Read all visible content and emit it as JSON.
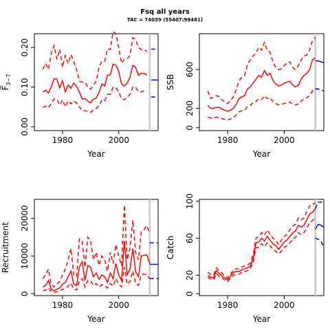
{
  "title": "Fsq all years",
  "subtitle": "TAC = 74039 (55407;99481)",
  "colors": {
    "historic": "#ff0000",
    "projection": "#0000ff",
    "marker": "#c8c8c8"
  },
  "chart_data": [
    {
      "id": "fbar",
      "type": "line",
      "xlabel": "Year",
      "ylabel": "F̅",
      "ylabel_sub": "3−7",
      "xlim": [
        1970,
        2014
      ],
      "ylim": [
        -0.01,
        0.235
      ],
      "xticks": [
        1980,
        2000
      ],
      "yticks": [
        0.0,
        0.1,
        0.2
      ],
      "ytick_labels": [
        "0.00",
        "0.10",
        "0.20"
      ],
      "marker_year": 2011,
      "years": [
        1973,
        1974,
        1975,
        1976,
        1977,
        1978,
        1979,
        1980,
        1981,
        1982,
        1983,
        1984,
        1985,
        1986,
        1987,
        1988,
        1989,
        1990,
        1991,
        1992,
        1993,
        1994,
        1995,
        1996,
        1997,
        1998,
        1999,
        2000,
        2001,
        2002,
        2003,
        2004,
        2005,
        2006,
        2007,
        2008,
        2009,
        2010
      ],
      "series": [
        {
          "role": "estimate",
          "values": [
            0.088,
            0.092,
            0.085,
            0.1,
            0.121,
            0.12,
            0.098,
            0.116,
            0.088,
            0.105,
            0.097,
            0.11,
            0.102,
            0.088,
            0.07,
            0.071,
            0.065,
            0.06,
            0.07,
            0.072,
            0.087,
            0.108,
            0.103,
            0.13,
            0.131,
            0.158,
            0.155,
            0.14,
            0.108,
            0.103,
            0.11,
            0.125,
            0.155,
            0.15,
            0.13,
            0.135,
            0.135,
            0.13
          ]
        },
        {
          "role": "upper",
          "values": [
            0.145,
            0.16,
            0.145,
            0.185,
            0.205,
            0.17,
            0.195,
            0.15,
            0.18,
            0.16,
            0.182,
            0.165,
            0.145,
            0.115,
            0.113,
            0.113,
            0.1,
            0.095,
            0.105,
            0.115,
            0.15,
            0.165,
            0.165,
            0.197,
            0.195,
            0.24,
            0.235,
            0.2,
            0.16,
            0.17,
            0.172,
            0.18,
            0.225,
            0.22,
            0.2,
            0.195,
            0.195,
            0.19
          ]
        },
        {
          "role": "lower",
          "values": [
            0.048,
            0.052,
            0.048,
            0.058,
            0.07,
            0.07,
            0.055,
            0.068,
            0.05,
            0.065,
            0.058,
            0.065,
            0.06,
            0.05,
            0.04,
            0.041,
            0.038,
            0.036,
            0.043,
            0.046,
            0.053,
            0.067,
            0.065,
            0.082,
            0.082,
            0.1,
            0.098,
            0.088,
            0.07,
            0.068,
            0.073,
            0.082,
            0.1,
            0.1,
            0.088,
            0.088,
            0.09,
            0.088
          ]
        }
      ],
      "projection": {
        "start": 2011.5,
        "end": 2014,
        "estimate": 0.118,
        "upper": 0.196,
        "lower": 0.075
      }
    },
    {
      "id": "ssb",
      "type": "line",
      "xlabel": "Year",
      "ylabel": "SSB",
      "xlim": [
        1970,
        2014
      ],
      "ylim": [
        -30,
        970
      ],
      "xticks": [
        1980,
        2000
      ],
      "yticks": [
        0,
        200,
        600
      ],
      "ytick_labels": [
        "0",
        "200",
        "600"
      ],
      "marker_year": 2011,
      "years": [
        1973,
        1974,
        1975,
        1976,
        1977,
        1978,
        1979,
        1980,
        1981,
        1982,
        1983,
        1984,
        1985,
        1986,
        1987,
        1988,
        1989,
        1990,
        1991,
        1992,
        1993,
        1994,
        1995,
        1996,
        1997,
        1998,
        1999,
        2000,
        2001,
        2002,
        2003,
        2004,
        2005,
        2006,
        2007,
        2008,
        2009,
        2010,
        2011
      ],
      "series": [
        {
          "role": "estimate",
          "values": [
            230,
            200,
            200,
            210,
            210,
            195,
            180,
            170,
            180,
            200,
            240,
            300,
            320,
            330,
            400,
            420,
            460,
            500,
            540,
            520,
            590,
            540,
            560,
            490,
            450,
            430,
            440,
            460,
            470,
            480,
            440,
            420,
            440,
            500,
            540,
            560,
            600,
            700,
            720
          ]
        },
        {
          "role": "upper",
          "values": [
            380,
            300,
            320,
            330,
            320,
            290,
            260,
            250,
            280,
            320,
            390,
            480,
            520,
            540,
            650,
            700,
            740,
            770,
            830,
            800,
            880,
            800,
            780,
            680,
            620,
            600,
            610,
            640,
            670,
            680,
            620,
            600,
            640,
            700,
            740,
            750,
            800,
            900,
            930
          ]
        },
        {
          "role": "lower",
          "values": [
            110,
            100,
            100,
            110,
            105,
            95,
            85,
            80,
            90,
            105,
            130,
            165,
            175,
            180,
            220,
            230,
            260,
            270,
            300,
            290,
            330,
            300,
            310,
            270,
            250,
            235,
            240,
            250,
            255,
            265,
            240,
            235,
            245,
            275,
            300,
            310,
            330,
            380,
            400
          ]
        }
      ],
      "projection": {
        "start": 2011,
        "end": 2014,
        "estimate_values": [
          690,
          690,
          680,
          670
        ],
        "upper_values": [
          400,
          400,
          390,
          380
        ],
        "lower_values": [
          400,
          400,
          390,
          380
        ]
      }
    },
    {
      "id": "recruitment",
      "type": "line",
      "xlabel": "Year",
      "ylabel": "Recruitment",
      "xlim": [
        1970,
        2014
      ],
      "ylim": [
        -500,
        25000
      ],
      "xticks": [
        1980,
        2000
      ],
      "yticks": [
        0,
        10000,
        20000
      ],
      "ytick_labels": [
        "0",
        "10000",
        "20000"
      ],
      "marker_year": 2011,
      "years": [
        1973,
        1974,
        1975,
        1976,
        1977,
        1978,
        1979,
        1980,
        1981,
        1982,
        1983,
        1984,
        1985,
        1986,
        1987,
        1988,
        1989,
        1990,
        1991,
        1992,
        1993,
        1994,
        1995,
        1996,
        1997,
        1998,
        1999,
        2000,
        2001,
        2002,
        2003,
        2004,
        2005,
        2006,
        2007,
        2008,
        2009,
        2010,
        2011
      ],
      "series": [
        {
          "role": "estimate",
          "values": [
            1800,
            2200,
            3500,
            1200,
            800,
            1200,
            1500,
            2500,
            3000,
            4500,
            6000,
            2500,
            2200,
            7000,
            8500,
            3500,
            7500,
            7000,
            4500,
            5500,
            3800,
            5000,
            4500,
            3000,
            5500,
            4000,
            8000,
            5000,
            3500,
            14000,
            5000,
            6500,
            12000,
            5800,
            4500,
            10000,
            10200,
            10300,
            8000
          ]
        },
        {
          "role": "upper",
          "values": [
            4000,
            5000,
            6500,
            2500,
            1800,
            2500,
            3200,
            5000,
            6500,
            9000,
            12000,
            5000,
            4500,
            14500,
            14000,
            7000,
            15000,
            14000,
            9000,
            11000,
            7500,
            10000,
            9000,
            6000,
            11000,
            8000,
            13000,
            10000,
            7500,
            23500,
            9000,
            12000,
            19500,
            11000,
            9000,
            16500,
            17000,
            18000,
            16000
          ]
        },
        {
          "role": "lower",
          "values": [
            800,
            1000,
            1500,
            500,
            400,
            500,
            700,
            1200,
            1400,
            2000,
            2800,
            1200,
            1000,
            3500,
            4000,
            1800,
            3500,
            3500,
            2200,
            2700,
            1800,
            2400,
            2200,
            1500,
            2700,
            2000,
            4000,
            2500,
            1800,
            7000,
            2500,
            3200,
            6000,
            2800,
            2200,
            5000,
            5200,
            5000,
            4000
          ]
        }
      ],
      "projection": {
        "start": 2011,
        "end": 2014,
        "estimate": 7800,
        "upper": 13500,
        "lower": 4000
      }
    },
    {
      "id": "catch",
      "type": "line",
      "xlabel": "Year",
      "ylabel": "Catch",
      "xlim": [
        1970,
        2014
      ],
      "ylim": [
        -2,
        102
      ],
      "xticks": [
        1980,
        2000
      ],
      "yticks": [
        0,
        20,
        60,
        100
      ],
      "ytick_labels": [
        "0",
        "20",
        "60",
        "100"
      ],
      "marker_year": 2011,
      "years": [
        1973,
        1974,
        1975,
        1976,
        1977,
        1978,
        1979,
        1980,
        1981,
        1982,
        1983,
        1984,
        1985,
        1986,
        1987,
        1988,
        1989,
        1990,
        1991,
        1992,
        1993,
        1994,
        1995,
        1996,
        1997,
        1998,
        1999,
        2000,
        2001,
        2002,
        2003,
        2004,
        2005,
        2006,
        2007,
        2008,
        2009,
        2010,
        2011
      ],
      "series": [
        {
          "role": "observed",
          "values": [
            20,
            18,
            17,
            25,
            22,
            19,
            17,
            15,
            19,
            23,
            24,
            24,
            26,
            27,
            28,
            30,
            38,
            55,
            56,
            60,
            57,
            62,
            58,
            54,
            52,
            48,
            52,
            56,
            58,
            62,
            66,
            68,
            74,
            72,
            74,
            80,
            86,
            88,
            92
          ]
        },
        {
          "role": "upper",
          "values": [
            23,
            21,
            20,
            28,
            25,
            22,
            19,
            17,
            21,
            26,
            27,
            27,
            29,
            30,
            31,
            33,
            42,
            60,
            62,
            66,
            63,
            69,
            64,
            60,
            58,
            53,
            58,
            62,
            64,
            69,
            73,
            75,
            82,
            80,
            82,
            89,
            95,
            97,
            98
          ]
        },
        {
          "role": "lower",
          "values": [
            18,
            16,
            15,
            22,
            19,
            17,
            15,
            13,
            17,
            20,
            21,
            21,
            23,
            24,
            25,
            27,
            34,
            50,
            50,
            54,
            51,
            55,
            52,
            48,
            46,
            43,
            46,
            50,
            52,
            55,
            59,
            61,
            66,
            64,
            66,
            71,
            77,
            79,
            83
          ]
        }
      ],
      "projection": {
        "start": 2011,
        "end": 2014,
        "estimate_values": [
          70,
          75,
          74,
          72
        ],
        "upper_values": [
          92,
          99,
          99,
          98
        ],
        "lower_values": [
          60,
          59,
          57,
          50
        ]
      }
    }
  ]
}
